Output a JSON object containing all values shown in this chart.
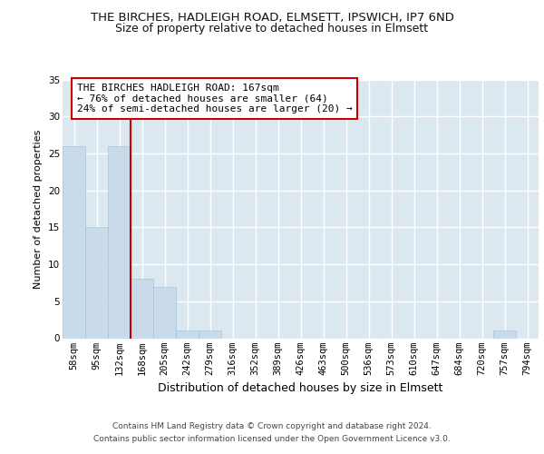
{
  "title": "THE BIRCHES, HADLEIGH ROAD, ELMSETT, IPSWICH, IP7 6ND",
  "subtitle": "Size of property relative to detached houses in Elmsett",
  "xlabel": "Distribution of detached houses by size in Elmsett",
  "ylabel": "Number of detached properties",
  "categories": [
    "58sqm",
    "95sqm",
    "132sqm",
    "168sqm",
    "205sqm",
    "242sqm",
    "279sqm",
    "316sqm",
    "352sqm",
    "389sqm",
    "426sqm",
    "463sqm",
    "500sqm",
    "536sqm",
    "573sqm",
    "610sqm",
    "647sqm",
    "684sqm",
    "720sqm",
    "757sqm",
    "794sqm"
  ],
  "values": [
    26,
    15,
    26,
    8,
    7,
    1,
    1,
    0,
    0,
    0,
    0,
    0,
    0,
    0,
    0,
    0,
    0,
    0,
    0,
    1,
    0
  ],
  "bar_color": "#c9daea",
  "bar_edge_color": "#a8c4d8",
  "vline_position": 2.5,
  "vline_color": "#cc0000",
  "ylim": [
    0,
    35
  ],
  "yticks": [
    0,
    5,
    10,
    15,
    20,
    25,
    30,
    35
  ],
  "annotation_line1": "THE BIRCHES HADLEIGH ROAD: 167sqm",
  "annotation_line2": "← 76% of detached houses are smaller (64)",
  "annotation_line3": "24% of semi-detached houses are larger (20) →",
  "footer_line1": "Contains HM Land Registry data © Crown copyright and database right 2024.",
  "footer_line2": "Contains public sector information licensed under the Open Government Licence v3.0.",
  "plot_bg_color": "#dce8f0",
  "grid_color": "#ffffff",
  "title_fontsize": 9.5,
  "subtitle_fontsize": 9,
  "xlabel_fontsize": 9,
  "ylabel_fontsize": 8,
  "tick_fontsize": 7.5,
  "annot_fontsize": 8,
  "footer_fontsize": 6.5
}
